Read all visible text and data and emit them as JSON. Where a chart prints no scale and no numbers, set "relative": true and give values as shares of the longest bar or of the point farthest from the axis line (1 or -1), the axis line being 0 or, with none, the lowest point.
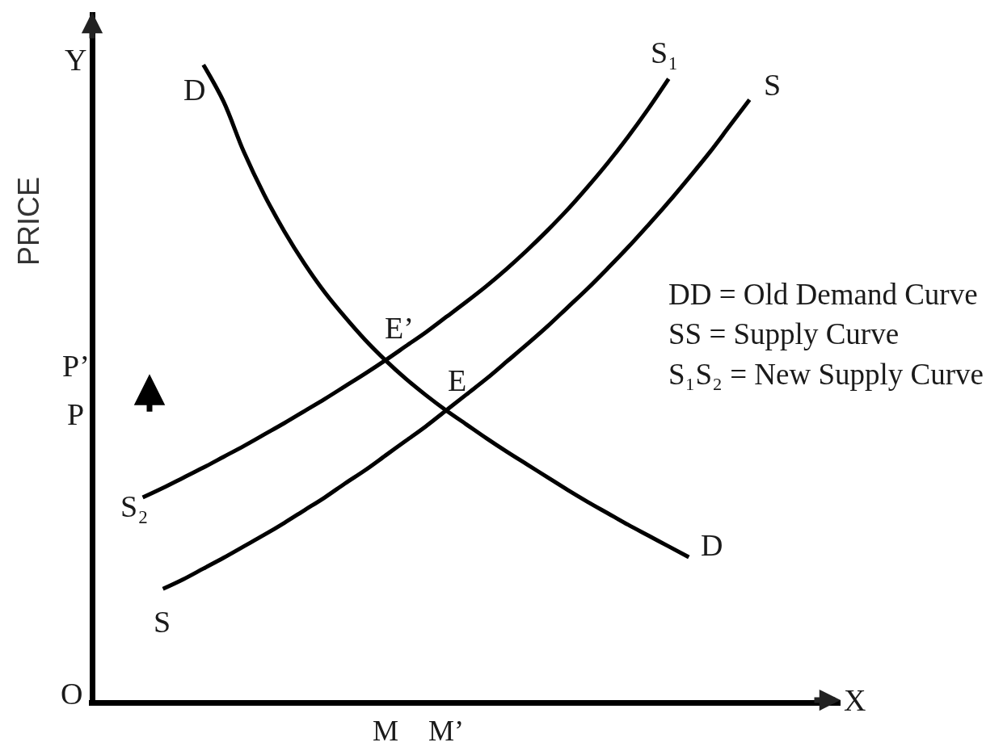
{
  "chart_data": {
    "type": "line",
    "relative": true,
    "xlabel": "X",
    "ylabel": "PRICE",
    "marker": "none",
    "line_style": "solid",
    "categories": [
      null,
      null,
      null,
      null,
      null,
      null,
      null,
      null,
      null,
      null,
      null,
      null,
      null,
      null,
      "M",
      null,
      null,
      "M’",
      null,
      null,
      null,
      null,
      null,
      null,
      null,
      null,
      null,
      null,
      null,
      null,
      null,
      null,
      null,
      null,
      null,
      null,
      null
    ],
    "series": [
      {
        "color": "#000000",
        "values": [
          null,
          null,
          null,
          null,
          null,
          1,
          0.942,
          0.863,
          0.796,
          0.738,
          0.687,
          0.642,
          0.603,
          0.567,
          0.535,
          0.506,
          0.48,
          0.456,
          0.434,
          0.412,
          0.391,
          0.371,
          0.351,
          0.331,
          0.312,
          0.294,
          0.276,
          0.259,
          0.242,
          0.225,
          null,
          null,
          null,
          null,
          null,
          null,
          null
        ]
      },
      {
        "color": "#000000",
        "values": [
          null,
          null,
          0.319,
          0.334,
          0.35,
          0.366,
          0.383,
          0.4,
          0.418,
          0.436,
          0.455,
          0.474,
          0.494,
          0.514,
          0.535,
          0.557,
          0.579,
          0.603,
          0.627,
          0.652,
          0.679,
          0.708,
          0.739,
          0.772,
          0.808,
          0.846,
          0.887,
          0.931,
          0.978,
          null,
          null,
          null,
          null,
          null,
          null,
          null,
          null
        ]
      },
      {
        "color": "#000000",
        "values": [
          null,
          null,
          null,
          0.175,
          0.19,
          0.207,
          0.224,
          0.242,
          0.26,
          0.279,
          0.299,
          0.319,
          0.341,
          0.362,
          0.385,
          0.408,
          0.431,
          0.456,
          0.481,
          0.506,
          0.533,
          0.56,
          0.588,
          0.618,
          0.648,
          0.68,
          0.713,
          0.748,
          0.784,
          0.822,
          0.861,
          0.903,
          0.945,
          null,
          null,
          null,
          null
        ]
      }
    ],
    "annotations": [
      "Y",
      "O",
      "P’",
      "P",
      "D",
      "S₁",
      "S",
      "E’",
      "E",
      "S₂",
      "D",
      "S",
      "DD = Old Demand Curve",
      "SS = Supply Curve",
      "S₁S₂ = New Supply Curve"
    ]
  }
}
